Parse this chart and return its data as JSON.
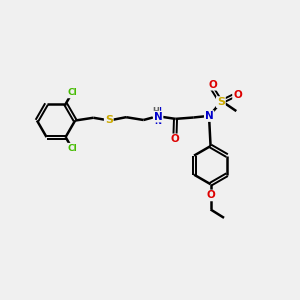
{
  "background_color": "#f0f0f0",
  "atom_colors": {
    "C": "#000000",
    "H": "#606060",
    "N": "#0000cc",
    "O": "#dd0000",
    "S": "#ccaa00",
    "Cl": "#44bb00"
  },
  "bond_color": "#000000",
  "bond_width": 1.8,
  "figsize": [
    3.0,
    3.0
  ],
  "dpi": 100,
  "xlim": [
    0.0,
    10.5
  ],
  "ylim": [
    1.0,
    8.5
  ]
}
